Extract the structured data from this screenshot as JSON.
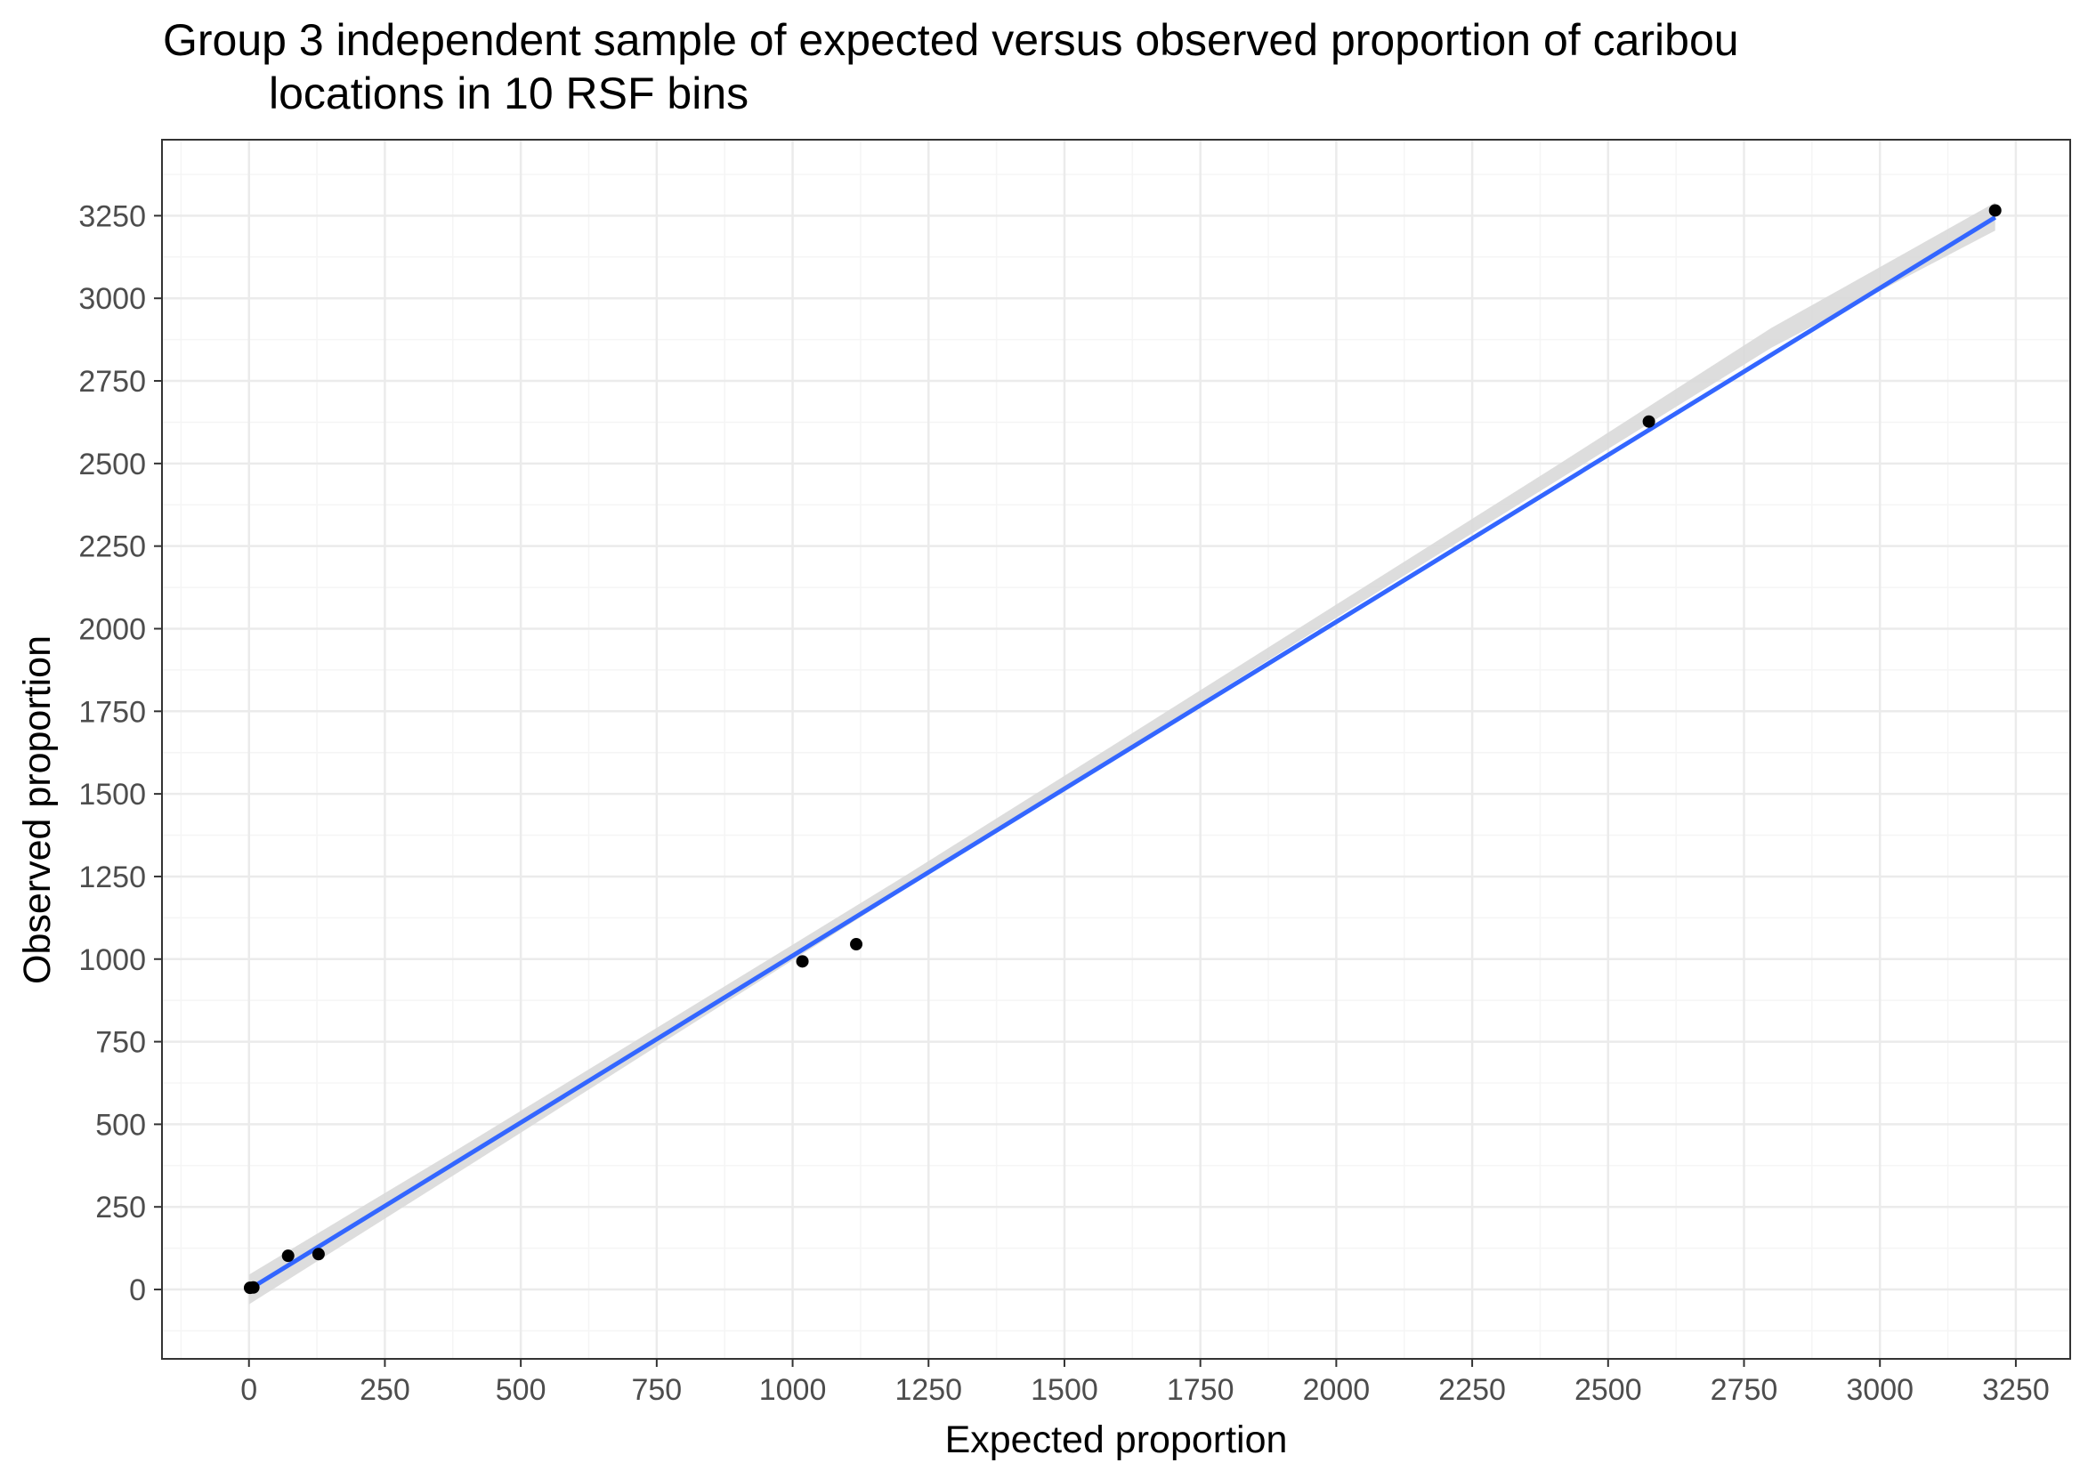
{
  "chart_data": {
    "type": "scatter",
    "title_lines": [
      "Group 3 independent sample of expected versus observed proportion of caribou",
      "locations in 10 RSF bins"
    ],
    "xlabel": "Expected proportion",
    "ylabel": "Observed proportion",
    "xlim": [
      -160,
      3350
    ],
    "ylim": [
      -210,
      3480
    ],
    "x_ticks": [
      0,
      250,
      500,
      750,
      1000,
      1250,
      1500,
      1750,
      2000,
      2250,
      2500,
      2750,
      3000,
      3250
    ],
    "y_ticks": [
      0,
      250,
      500,
      750,
      1000,
      1250,
      1500,
      1750,
      2000,
      2250,
      2500,
      2750,
      3000,
      3250
    ],
    "grid": true,
    "points": [
      {
        "x": 2,
        "y": 5
      },
      {
        "x": 8,
        "y": 6
      },
      {
        "x": 72,
        "y": 102
      },
      {
        "x": 128,
        "y": 107
      },
      {
        "x": 1018,
        "y": 993
      },
      {
        "x": 1117,
        "y": 1045
      },
      {
        "x": 2575,
        "y": 2627
      },
      {
        "x": 3212,
        "y": 3266
      }
    ],
    "fit_line": {
      "x": [
        0,
        3212
      ],
      "y": [
        0,
        3245
      ]
    },
    "confidence_band": {
      "x": [
        0,
        400,
        800,
        1200,
        1600,
        2000,
        2400,
        2800,
        3212
      ],
      "lower": [
        -45,
        370,
        788,
        1205,
        1622,
        2033,
        2442,
        2850,
        3205
      ],
      "upper": [
        45,
        440,
        842,
        1245,
        1658,
        2073,
        2488,
        2910,
        3290
      ]
    },
    "colors": {
      "point": "#000000",
      "line": "#3366ff",
      "band": "#d9d9d9",
      "grid_major": "#ebebeb",
      "grid_minor": "#f5f5f5",
      "panel_border": "#333333"
    }
  }
}
